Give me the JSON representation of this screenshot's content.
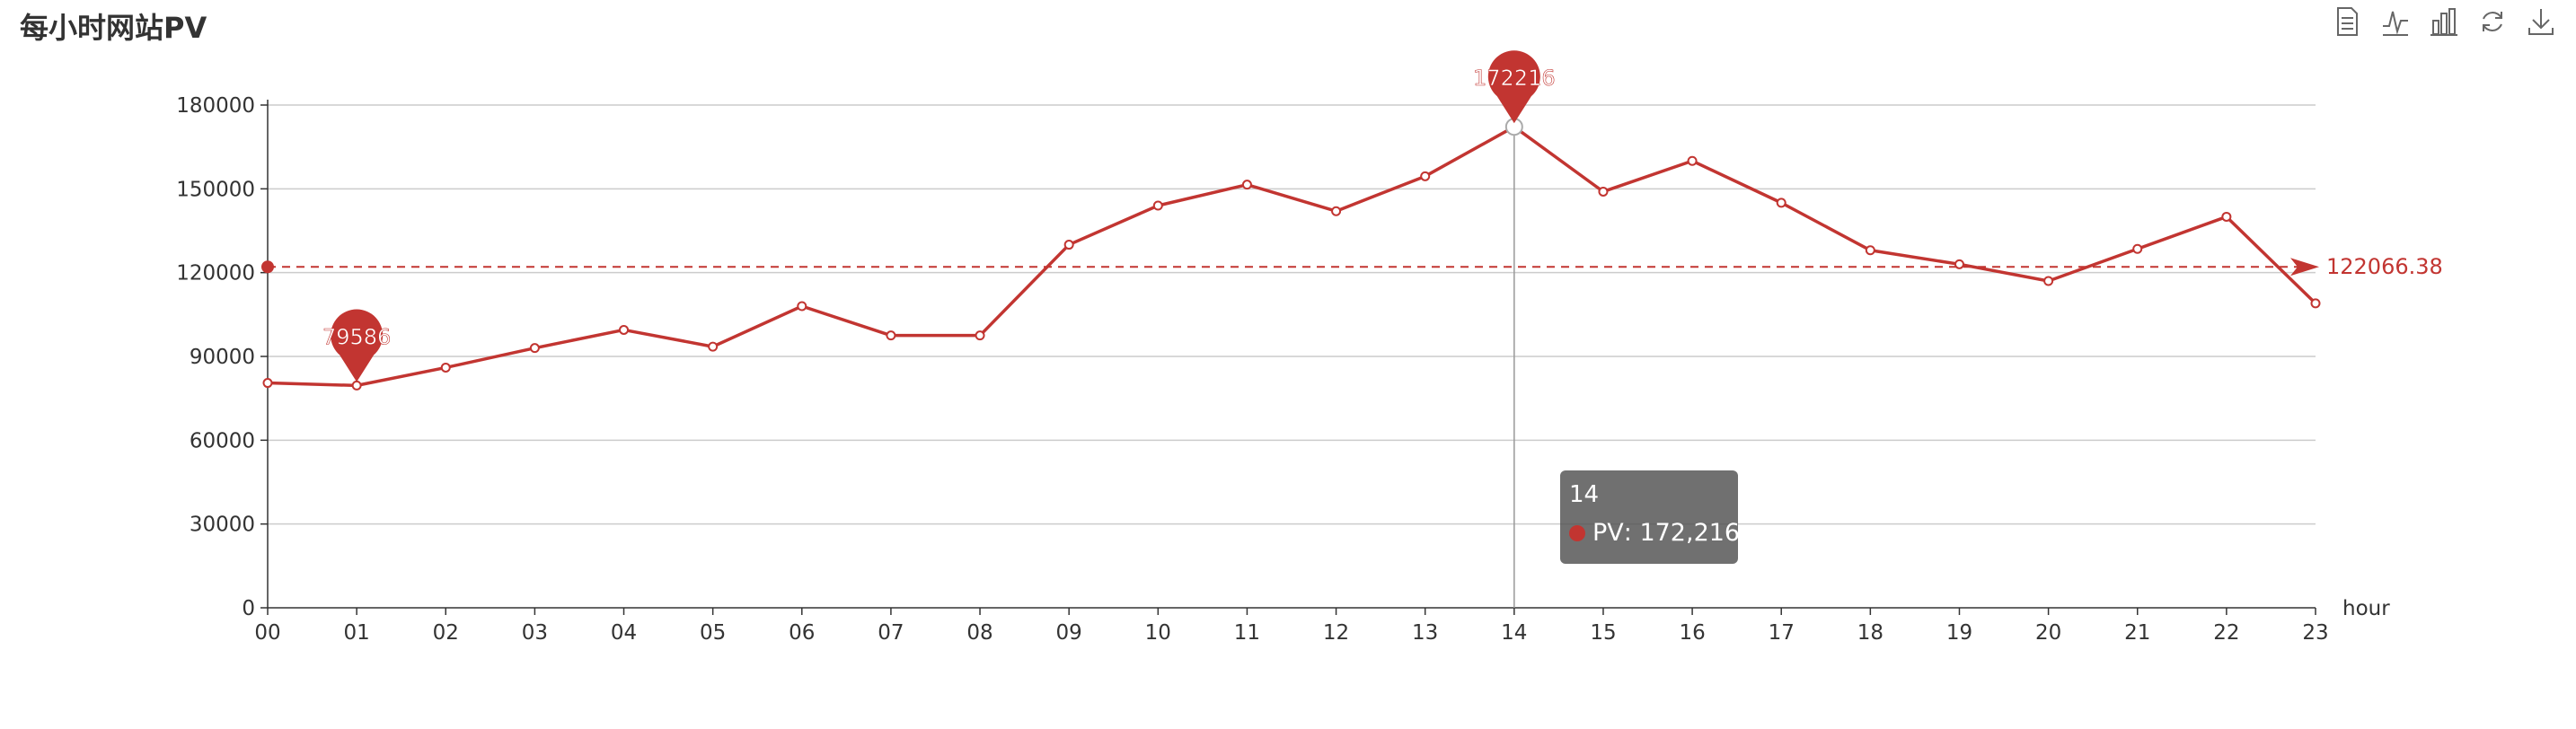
{
  "title": "每小时网站PV",
  "toolbox": [
    {
      "name": "data-view",
      "icon": "document-icon"
    },
    {
      "name": "line-type",
      "icon": "line-chart-icon"
    },
    {
      "name": "bar-type",
      "icon": "bar-chart-icon"
    },
    {
      "name": "restore",
      "icon": "refresh-icon"
    },
    {
      "name": "save-image",
      "icon": "download-icon"
    }
  ],
  "colors": {
    "series": "#c23531",
    "axis": "#333333",
    "grid": "#cccccc",
    "tooltip_bg": "#505050"
  },
  "chart_data": {
    "type": "line",
    "title": "每小时网站PV",
    "xlabel": "hour",
    "ylabel": "",
    "ylim": [
      0,
      180000
    ],
    "yticks": [
      "0",
      "30000",
      "60000",
      "90000",
      "120000",
      "150000",
      "180000"
    ],
    "categories": [
      "00",
      "01",
      "02",
      "03",
      "04",
      "05",
      "06",
      "07",
      "08",
      "09",
      "10",
      "11",
      "12",
      "13",
      "14",
      "15",
      "16",
      "17",
      "18",
      "19",
      "20",
      "21",
      "22",
      "23"
    ],
    "series": [
      {
        "name": "PV",
        "values": [
          80500,
          79586,
          86000,
          93000,
          99500,
          93500,
          108000,
          97500,
          97500,
          130000,
          144000,
          151500,
          142000,
          154500,
          172216,
          149000,
          160000,
          145000,
          128000,
          123000,
          117000,
          128500,
          140000,
          109000
        ]
      }
    ],
    "mark_points": [
      {
        "category": "01",
        "value": 79586,
        "label": "79586"
      },
      {
        "category": "14",
        "value": 172216,
        "label": "172216"
      }
    ],
    "mark_line": {
      "value": 122066.38,
      "label": "122066.38"
    },
    "grid": true,
    "tooltip": {
      "x": "14",
      "series": "PV",
      "value": "172,216"
    }
  }
}
